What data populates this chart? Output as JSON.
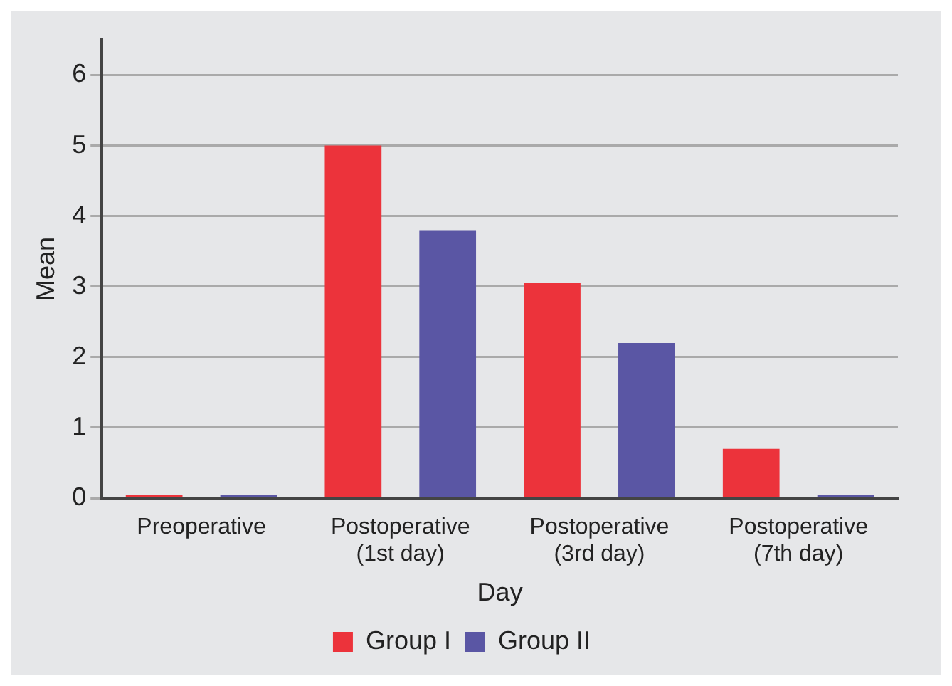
{
  "chart_data": {
    "type": "bar",
    "xlabel": "Day",
    "ylabel": "Mean",
    "categories": [
      "Preoperative",
      "Postoperative\n(1st day)",
      "Postoperative\n(3rd day)",
      "Postoperative\n(7th day)"
    ],
    "series": [
      {
        "name": "Group I",
        "color": "#ec333b",
        "values": [
          0,
          5.0,
          3.05,
          0.7
        ]
      },
      {
        "name": "Group II",
        "color": "#5a56a4",
        "values": [
          0,
          3.8,
          2.2,
          0
        ]
      }
    ],
    "ylim": [
      0,
      6.5
    ],
    "yticks": [
      0,
      1,
      2,
      3,
      4,
      5,
      6
    ],
    "grid": "y",
    "legend": "bottom"
  }
}
